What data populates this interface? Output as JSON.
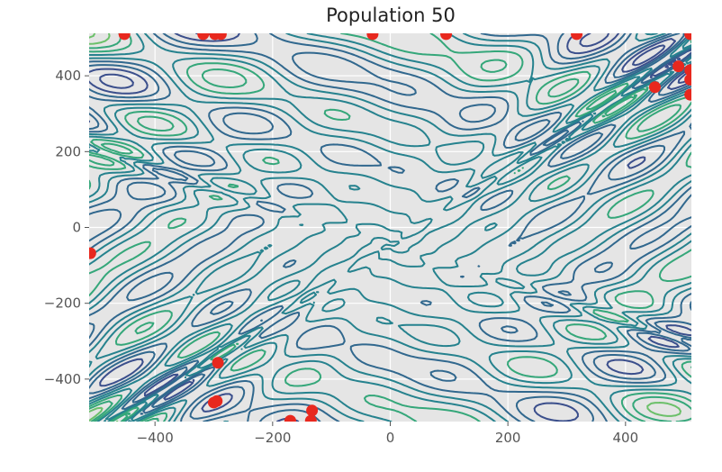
{
  "chart_data": {
    "type": "scatter",
    "title": "Population 50",
    "xlabel": "",
    "ylabel": "",
    "xlim": [
      -512,
      512
    ],
    "ylim": [
      -512,
      512
    ],
    "xticks": [
      -400,
      -200,
      0,
      200,
      400
    ],
    "yticks": [
      -400,
      -200,
      0,
      200,
      400
    ],
    "xtick_labels": [
      "−400",
      "−200",
      "0",
      "200",
      "400"
    ],
    "ytick_labels": [
      "−400",
      "−200",
      "0",
      "200",
      "400"
    ],
    "grid": true,
    "background": "#e5e5e5",
    "grid_color": "#ffffff",
    "point_color": "#e8281e",
    "contour_colormap": "viridis",
    "contour_colors": [
      "#3b4f8c",
      "#31688e",
      "#26828e",
      "#35a77a",
      "#6cc06a"
    ],
    "population": [
      {
        "x": -452,
        "y": 510
      },
      {
        "x": -318,
        "y": 510
      },
      {
        "x": -298,
        "y": 510
      },
      {
        "x": -288,
        "y": 510
      },
      {
        "x": -30,
        "y": 510
      },
      {
        "x": 95,
        "y": 510
      },
      {
        "x": 317,
        "y": 510
      },
      {
        "x": 510,
        "y": 510
      },
      {
        "x": 490,
        "y": 425
      },
      {
        "x": 510,
        "y": 415
      },
      {
        "x": 510,
        "y": 390
      },
      {
        "x": 450,
        "y": 370
      },
      {
        "x": 510,
        "y": 350
      },
      {
        "x": -510,
        "y": -68
      },
      {
        "x": -293,
        "y": -357
      },
      {
        "x": -295,
        "y": -458
      },
      {
        "x": -300,
        "y": -462
      },
      {
        "x": -133,
        "y": -483
      },
      {
        "x": -170,
        "y": -510
      },
      {
        "x": -135,
        "y": -510
      }
    ]
  }
}
